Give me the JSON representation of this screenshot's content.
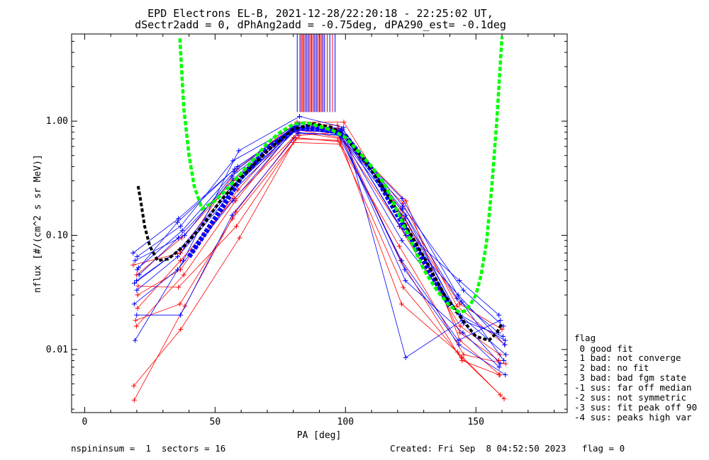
{
  "figure": {
    "title_line1": "EPD Electrons EL-B, 2021-12-28/22:20:18 - 22:25:02 UT,",
    "title_line2": "dSectr2add = 0, dPhAng2add = -0.75deg, dPA290_est=  -0.1deg",
    "footer_left": "nspininsum =  1  sectors = 16",
    "footer_right": "Created: Fri Sep  8 04:52:50 2023   flag = 0",
    "legend_title": "flag",
    "legend_items": [
      " 0 good fit",
      " 1 bad: not converge",
      " 2 bad: no fit",
      " 3 bad: bad fgm state",
      "-1 sus: far off median",
      "-2 sus: not symmetric",
      "-3 sus: fit peak off 90",
      "-4 sus: peaks high var"
    ]
  },
  "chart_data": {
    "type": "line",
    "xlabel": "PA [deg]",
    "ylabel": "nflux [#/(cm^2 s sr MeV)]",
    "xlim": [
      -5,
      185
    ],
    "ylim": [
      0.0028,
      5.8
    ],
    "yscale": "log",
    "xticks": [
      0,
      50,
      100,
      150
    ],
    "xtick_labels": [
      "0",
      "50",
      "100",
      "150"
    ],
    "yticks": [
      0.01,
      0.1,
      1.0
    ],
    "ytick_labels": [
      "0.01",
      "0.10",
      "1.00"
    ],
    "colors": {
      "red": "#ff0000",
      "blue": "#0000ff",
      "green": "#00ff00",
      "black": "#000000"
    },
    "pa_bins": [
      20,
      37,
      58,
      81,
      98,
      122,
      144,
      160
    ],
    "red_curves": [
      [
        0.045,
        0.095,
        0.3,
        0.85,
        0.72,
        0.19,
        0.024,
        0.011
      ],
      [
        0.023,
        0.06,
        0.21,
        0.8,
        0.7,
        0.12,
        0.016,
        0.009
      ],
      [
        0.036,
        0.035,
        0.12,
        0.7,
        0.68,
        0.08,
        0.009,
        0.0075
      ],
      [
        0.0048,
        0.015,
        0.095,
        0.65,
        0.63,
        0.035,
        0.0085,
        0.004
      ],
      [
        0.0036,
        0.024,
        0.16,
        0.72,
        0.66,
        0.025,
        0.0095,
        0.0037
      ],
      [
        0.018,
        0.025,
        0.14,
        0.75,
        0.8,
        0.2,
        0.012,
        0.006
      ],
      [
        0.03,
        0.05,
        0.25,
        0.95,
        0.92,
        0.17,
        0.014,
        0.008
      ],
      [
        0.055,
        0.07,
        0.38,
        0.98,
        0.98,
        0.15,
        0.025,
        0.015
      ],
      [
        0.016,
        0.045,
        0.2,
        0.88,
        0.86,
        0.06,
        0.008,
        0.006
      ]
    ],
    "blue_curves": [
      [
        0.012,
        0.06,
        0.55,
        1.1,
        0.88,
        0.0085,
        0.018,
        0.013
      ],
      [
        0.05,
        0.13,
        0.38,
        0.9,
        0.8,
        0.21,
        0.026,
        0.008
      ],
      [
        0.06,
        0.1,
        0.33,
        0.88,
        0.82,
        0.17,
        0.021,
        0.009
      ],
      [
        0.04,
        0.08,
        0.28,
        0.85,
        0.78,
        0.14,
        0.017,
        0.0075
      ],
      [
        0.07,
        0.14,
        0.4,
        0.92,
        0.83,
        0.1,
        0.03,
        0.011
      ],
      [
        0.025,
        0.05,
        0.2,
        0.8,
        0.75,
        0.04,
        0.014,
        0.007
      ],
      [
        0.033,
        0.065,
        0.25,
        0.83,
        0.8,
        0.06,
        0.012,
        0.018
      ],
      [
        0.045,
        0.095,
        0.31,
        0.87,
        0.84,
        0.12,
        0.04,
        0.02
      ],
      [
        0.02,
        0.02,
        0.15,
        0.78,
        0.76,
        0.05,
        0.011,
        0.006
      ],
      [
        0.052,
        0.11,
        0.36,
        0.9,
        0.81,
        0.15,
        0.028,
        0.014
      ],
      [
        0.038,
        0.075,
        0.27,
        0.86,
        0.79,
        0.09,
        0.02,
        0.012
      ],
      [
        0.065,
        0.12,
        0.45,
        0.95,
        0.86,
        0.18,
        0.033,
        0.016
      ]
    ],
    "green_fit": {
      "x": [
        36.5,
        38,
        40,
        42,
        45,
        50,
        55,
        60,
        65,
        70,
        75,
        80,
        85,
        90,
        95,
        100,
        105,
        110,
        115,
        120,
        125,
        130,
        135,
        140,
        144,
        146,
        148,
        150,
        152,
        154,
        156,
        158,
        160
      ],
      "y": [
        5.3,
        1.3,
        0.5,
        0.27,
        0.17,
        0.2,
        0.26,
        0.35,
        0.47,
        0.64,
        0.8,
        0.94,
        0.97,
        0.9,
        0.83,
        0.72,
        0.54,
        0.4,
        0.28,
        0.16,
        0.09,
        0.05,
        0.033,
        0.024,
        0.021,
        0.022,
        0.025,
        0.03,
        0.045,
        0.085,
        0.25,
        1.0,
        5.5
      ]
    },
    "black_fit": {
      "x": [
        20.5,
        21.5,
        23,
        25,
        28,
        32,
        38,
        45,
        52,
        60,
        70,
        80,
        88,
        95,
        100,
        110,
        120,
        130,
        138,
        145,
        150,
        155,
        158,
        160
      ],
      "y": [
        0.27,
        0.2,
        0.12,
        0.08,
        0.06,
        0.062,
        0.08,
        0.12,
        0.2,
        0.32,
        0.55,
        0.85,
        0.95,
        0.88,
        0.72,
        0.38,
        0.16,
        0.065,
        0.03,
        0.018,
        0.013,
        0.012,
        0.014,
        0.017
      ]
    },
    "blue_fit_band": {
      "x": [
        40,
        50,
        60,
        70,
        80,
        85,
        90,
        95,
        100,
        110,
        120,
        130,
        140
      ],
      "y": [
        0.065,
        0.14,
        0.32,
        0.56,
        0.84,
        0.88,
        0.85,
        0.82,
        0.74,
        0.38,
        0.15,
        0.06,
        0.024
      ]
    },
    "vertical_lines": {
      "x": [
        81.5,
        82.5,
        83,
        83.5,
        84,
        84.5,
        85,
        85.5,
        86,
        86.5,
        87,
        87.5,
        88,
        88.5,
        89,
        89.5,
        90,
        90.5,
        91,
        91.5,
        92,
        93,
        94,
        95,
        96
      ],
      "y_low": 1.2
    }
  }
}
